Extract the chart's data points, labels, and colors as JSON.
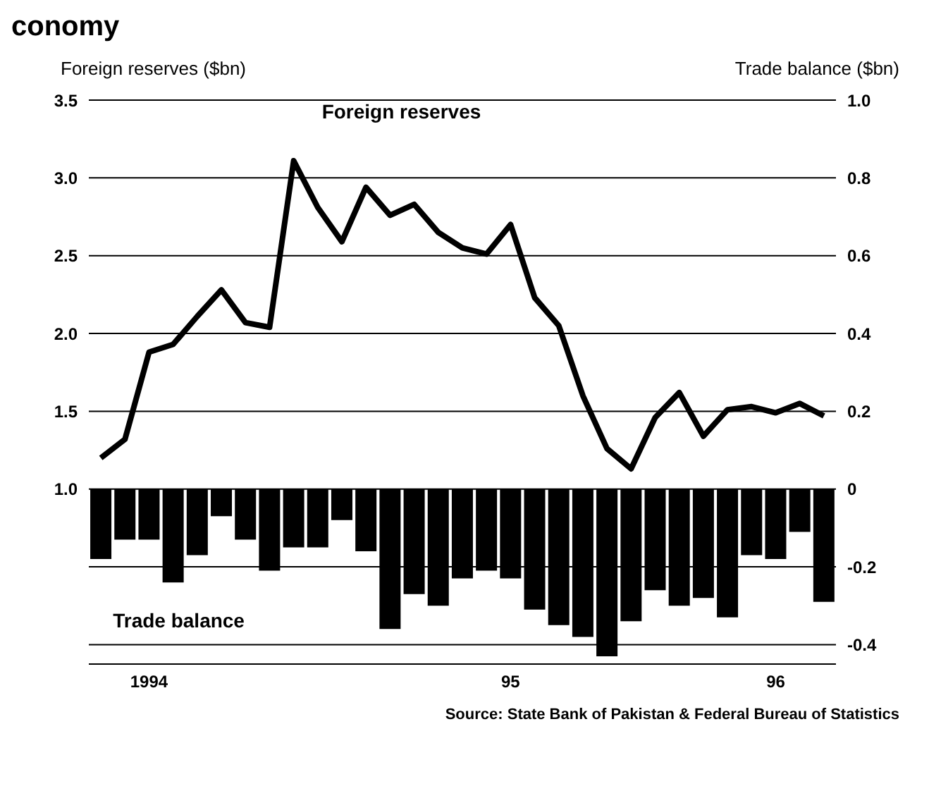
{
  "chart_data": {
    "type": "bar",
    "title": "conomy",
    "ylabel": "Foreign reserves ($bn)",
    "y2label": "Trade balance ($bn)",
    "categories": [
      null,
      null,
      "1994",
      null,
      null,
      null,
      null,
      null,
      null,
      null,
      null,
      null,
      null,
      null,
      null,
      null,
      null,
      "95",
      null,
      null,
      null,
      null,
      null,
      null,
      null,
      null,
      null,
      null,
      "96",
      null,
      null
    ],
    "series": [
      {
        "name": "Foreign reserves",
        "type": "line",
        "color": "#000000",
        "values": [
          1.2,
          1.32,
          1.88,
          1.93,
          2.11,
          2.28,
          2.07,
          2.04,
          3.11,
          2.81,
          2.59,
          2.94,
          2.76,
          2.83,
          2.65,
          2.55,
          2.51,
          2.7,
          2.23,
          2.05,
          1.6,
          1.26,
          1.13,
          1.46,
          1.62,
          1.34,
          1.51,
          1.53,
          1.49,
          1.55,
          1.47
        ]
      },
      {
        "name": "Trade balance",
        "axis": "y2",
        "color": "#000000",
        "values": [
          -0.18,
          -0.13,
          -0.13,
          -0.24,
          -0.17,
          -0.07,
          -0.13,
          -0.21,
          -0.15,
          -0.15,
          -0.08,
          -0.16,
          -0.36,
          -0.27,
          -0.3,
          -0.23,
          -0.21,
          -0.23,
          -0.31,
          -0.35,
          -0.38,
          -0.43,
          -0.34,
          -0.26,
          -0.3,
          -0.28,
          -0.33,
          -0.17,
          -0.18,
          -0.11,
          -0.29
        ]
      }
    ],
    "ylim": [
      -0.125,
      3.5
    ],
    "yticks": [
      {
        "value": 1,
        "label": "1.0"
      },
      1.5,
      {
        "value": 2,
        "label": "2.0"
      },
      2.5,
      {
        "value": 3,
        "label": "3.0"
      },
      3.5
    ],
    "y2lim": [
      -0.45,
      1.0
    ],
    "y2ticks": [
      {
        "value": 1,
        "label": "1.0"
      },
      0.8,
      0.6,
      0.4,
      0.2,
      0,
      -0.2,
      -0.4
    ],
    "grid": "y",
    "legend": false,
    "marker": "none",
    "annotations": [
      "Source: State Bank of Pakistan & Federal Bureau of Statistics"
    ]
  }
}
